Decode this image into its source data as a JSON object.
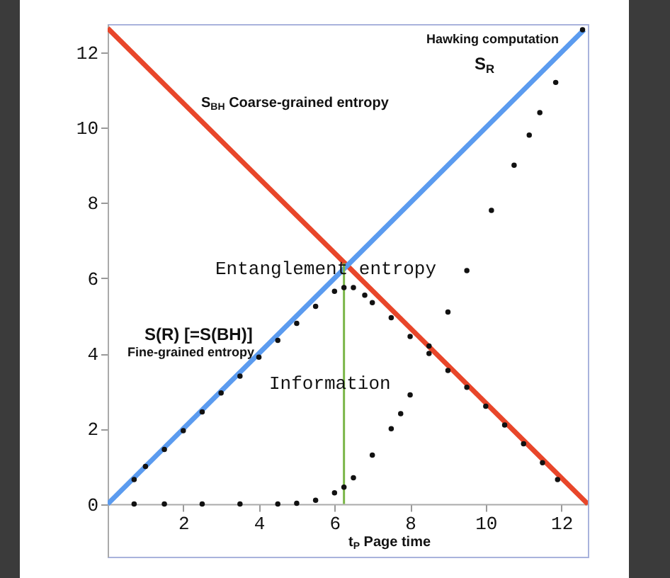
{
  "chart_data": {
    "type": "line",
    "xlim": [
      0,
      12.7
    ],
    "ylim": [
      -1.4,
      12.75
    ],
    "xticks": [
      2,
      4,
      6,
      8,
      10,
      12
    ],
    "yticks": [
      0,
      2,
      4,
      6,
      8,
      10,
      12
    ],
    "grid": false,
    "series": [
      {
        "color": "#e8462a",
        "x": [
          0,
          12.7
        ],
        "values": [
          12.64,
          0
        ]
      },
      {
        "color": "#5b9bef",
        "x": [
          0,
          12.6
        ],
        "values": [
          0,
          12.6
        ]
      },
      {
        "color": "#7ab648",
        "x": [
          6.25,
          6.25
        ],
        "values": [
          0,
          6.4
        ]
      },
      {
        "type": "scatter",
        "color": "#111111",
        "x": [
          0.7,
          1,
          1.5,
          2,
          2.5,
          3,
          3.5,
          4,
          4.5,
          5,
          5.5,
          6,
          6.25,
          6.5,
          6.8,
          7,
          7.5,
          8,
          8.5,
          9,
          9.5,
          10,
          10.5,
          11,
          11.5,
          11.9
        ],
        "values": [
          0.65,
          1.0,
          1.45,
          1.95,
          2.45,
          2.95,
          3.4,
          3.9,
          4.35,
          4.8,
          5.25,
          5.65,
          5.75,
          5.75,
          5.55,
          5.35,
          4.95,
          4.45,
          4.0,
          3.55,
          3.1,
          2.6,
          2.1,
          1.6,
          1.1,
          0.65
        ]
      },
      {
        "type": "scatter",
        "color": "#111111",
        "x": [
          0.7,
          1.5,
          2.5,
          3.5,
          4.5,
          5,
          5.5,
          6,
          6.25,
          6.5,
          7,
          7.5,
          7.75,
          8,
          8.5,
          9,
          9.5,
          10.15,
          10.75,
          11.15,
          11.43,
          11.85,
          12.56
        ],
        "values": [
          0,
          0,
          0,
          0,
          0,
          0.02,
          0.1,
          0.3,
          0.45,
          0.7,
          1.3,
          2.0,
          2.4,
          2.9,
          4.2,
          5.1,
          6.2,
          7.8,
          9.0,
          9.8,
          10.4,
          11.2,
          12.6
        ]
      }
    ],
    "annotations": [
      "S$_{BH}$ Coarse-grained entropy",
      "Hawking computation",
      "S$_{R}$",
      "Entanglement entropy",
      "S(R) [=S(BH)]",
      "Fine-grained entropy",
      "Information",
      "t$_{P}$ Page time"
    ]
  }
}
